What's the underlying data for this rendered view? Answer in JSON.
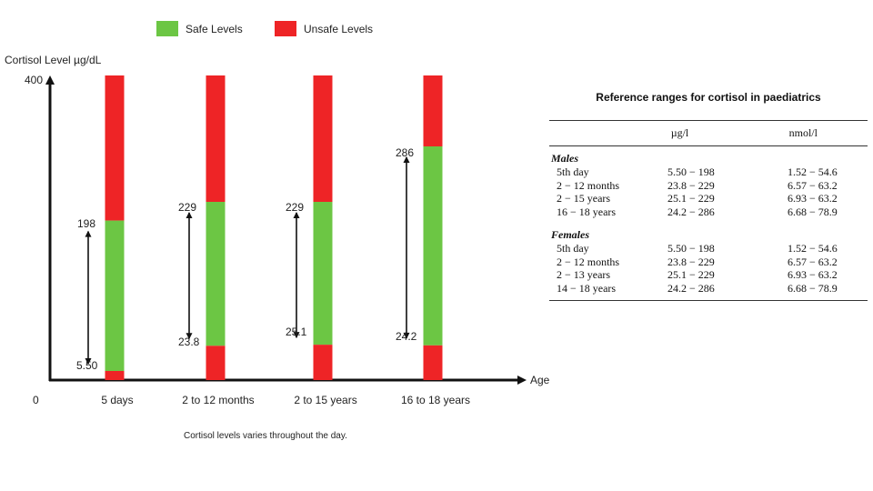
{
  "legend": [
    {
      "label": "Safe Levels",
      "color": "#6cc644"
    },
    {
      "label": "Unsafe Levels",
      "color": "#ee2426"
    }
  ],
  "chart_data": {
    "type": "bar",
    "subtype": "stacked-range",
    "ylabel": "Cortisol Level µg/dL",
    "xlabel": "Age",
    "origin_label": "0",
    "ymax_label": "400",
    "ylim": [
      0,
      400
    ],
    "categories": [
      "5 days",
      "2 to 12 months",
      "2 to 15 years",
      "16 to 18 years"
    ],
    "series": [
      {
        "name": "Unsafe Levels",
        "role": "lower",
        "values": [
          5.5,
          23.8,
          25.1,
          24.2
        ]
      },
      {
        "name": "Safe Levels",
        "role": "range",
        "low": [
          5.5,
          23.8,
          25.1,
          24.2
        ],
        "high": [
          198,
          229,
          229,
          286
        ]
      },
      {
        "name": "Unsafe Levels",
        "role": "upper",
        "values": [
          400,
          400,
          400,
          400
        ]
      }
    ],
    "range_labels": [
      {
        "low": "5.50",
        "high": "198"
      },
      {
        "low": "23.8",
        "high": "229"
      },
      {
        "low": "25.1",
        "high": "229"
      },
      {
        "low": "24.2",
        "high": "286"
      }
    ],
    "colors": {
      "safe": "#6cc644",
      "unsafe": "#ee2426"
    },
    "grid": false,
    "legend_position": "top-center"
  },
  "caption": "Cortisol levels varies throughout the day.",
  "reference": {
    "title": "Reference ranges for cortisol in paediatrics",
    "headers": [
      "",
      "µg/l",
      "nmol/l"
    ],
    "groups": [
      {
        "label": "Males",
        "rows": [
          [
            "5th day",
            "5.50 − 198",
            "1.52 − 54.6"
          ],
          [
            "2 − 12 months",
            "23.8 − 229",
            "6.57 − 63.2"
          ],
          [
            "2 − 15 years",
            "25.1 − 229",
            "6.93 − 63.2"
          ],
          [
            "16 − 18 years",
            "24.2 − 286",
            "6.68 − 78.9"
          ]
        ]
      },
      {
        "label": "Females",
        "rows": [
          [
            "5th day",
            "5.50 − 198",
            "1.52 − 54.6"
          ],
          [
            "2 − 12 months",
            "23.8 − 229",
            "6.57 − 63.2"
          ],
          [
            "2 − 13 years",
            "25.1 − 229",
            "6.93 − 63.2"
          ],
          [
            "14 − 18 years",
            "24.2 − 286",
            "6.68 − 78.9"
          ]
        ]
      }
    ]
  }
}
